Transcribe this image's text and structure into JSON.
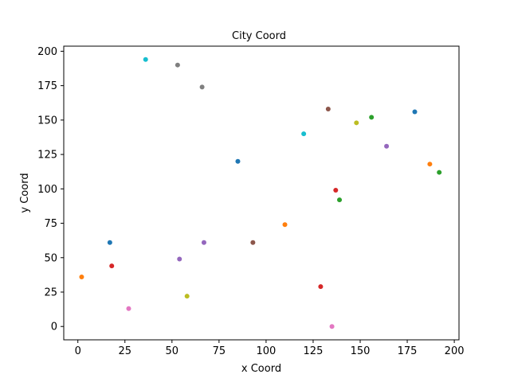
{
  "chart_data": {
    "type": "scatter",
    "title": "City Coord",
    "xlabel": "x Coord",
    "ylabel": "y Coord",
    "xlim": [
      -7.5,
      202.5
    ],
    "ylim": [
      -9.7,
      203.7
    ],
    "xticks": [
      0,
      25,
      50,
      75,
      100,
      125,
      150,
      175,
      200
    ],
    "yticks": [
      0,
      25,
      50,
      75,
      100,
      125,
      150,
      175,
      200
    ],
    "grid": false,
    "points": [
      {
        "x": 17,
        "y": 61,
        "color": "#1f77b4"
      },
      {
        "x": 2,
        "y": 36,
        "color": "#ff7f0e"
      },
      {
        "x": 18,
        "y": 44,
        "color": "#d62728"
      },
      {
        "x": 27,
        "y": 13,
        "color": "#e377c2"
      },
      {
        "x": 36,
        "y": 194,
        "color": "#17becf"
      },
      {
        "x": 53,
        "y": 190,
        "color": "#7f7f7f"
      },
      {
        "x": 54,
        "y": 49,
        "color": "#9467bd"
      },
      {
        "x": 58,
        "y": 22,
        "color": "#bcbd22"
      },
      {
        "x": 66,
        "y": 174,
        "color": "#7f7f7f"
      },
      {
        "x": 67,
        "y": 61,
        "color": "#9467bd"
      },
      {
        "x": 85,
        "y": 120,
        "color": "#1f77b4"
      },
      {
        "x": 93,
        "y": 61,
        "color": "#8c564b"
      },
      {
        "x": 110,
        "y": 74,
        "color": "#ff7f0e"
      },
      {
        "x": 120,
        "y": 140,
        "color": "#17becf"
      },
      {
        "x": 129,
        "y": 29,
        "color": "#d62728"
      },
      {
        "x": 133,
        "y": 158,
        "color": "#8c564b"
      },
      {
        "x": 135,
        "y": 0,
        "color": "#e377c2"
      },
      {
        "x": 137,
        "y": 99,
        "color": "#d62728"
      },
      {
        "x": 139,
        "y": 92,
        "color": "#2ca02c"
      },
      {
        "x": 148,
        "y": 148,
        "color": "#bcbd22"
      },
      {
        "x": 156,
        "y": 152,
        "color": "#2ca02c"
      },
      {
        "x": 164,
        "y": 131,
        "color": "#9467bd"
      },
      {
        "x": 179,
        "y": 156,
        "color": "#1f77b4"
      },
      {
        "x": 187,
        "y": 118,
        "color": "#ff7f0e"
      },
      {
        "x": 192,
        "y": 112,
        "color": "#2ca02c"
      }
    ]
  }
}
